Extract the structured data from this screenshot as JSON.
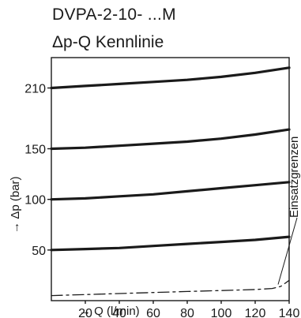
{
  "title_line1": "DVPA-2-10- ...M",
  "title_line2": "Δp-Q Kennlinie",
  "chart_data": {
    "type": "line",
    "xlabel": "→ Q (l/min)",
    "ylabel": "→ Δp (bar)",
    "xlim": [
      0,
      140
    ],
    "ylim": [
      0,
      240
    ],
    "x_ticks": [
      "20",
      "40",
      "60",
      "80",
      "100",
      "120",
      "140"
    ],
    "y_ticks": [
      "50",
      "100",
      "150",
      "210"
    ],
    "grid": false,
    "annotation": "Einsatzgrenzen",
    "series": [
      {
        "x": [
          0,
          20,
          40,
          60,
          80,
          100,
          120,
          140
        ],
        "y": [
          210,
          212,
          214,
          216,
          218,
          221,
          225,
          230
        ]
      },
      {
        "x": [
          0,
          20,
          40,
          60,
          80,
          100,
          120,
          140
        ],
        "y": [
          150,
          151,
          153,
          155,
          157,
          160,
          164,
          169
        ]
      },
      {
        "x": [
          0,
          20,
          40,
          60,
          80,
          100,
          120,
          140
        ],
        "y": [
          100,
          101,
          103,
          105,
          108,
          111,
          114,
          117
        ]
      },
      {
        "x": [
          0,
          20,
          40,
          60,
          80,
          100,
          120,
          140
        ],
        "y": [
          50,
          51,
          52,
          54,
          56,
          58,
          60,
          63
        ]
      },
      {
        "x": [
          0,
          20,
          40,
          60,
          80,
          100,
          120,
          130,
          135,
          140
        ],
        "y": [
          5,
          6,
          7,
          8,
          9,
          10,
          11,
          12,
          14,
          20
        ],
        "style": "dash-dot"
      }
    ]
  }
}
